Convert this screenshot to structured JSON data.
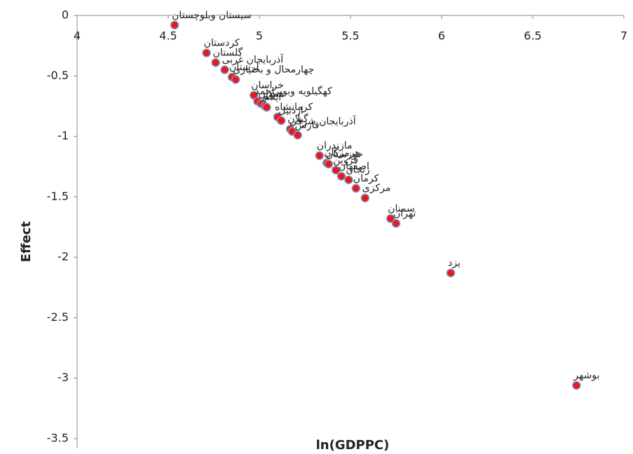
{
  "chart_data": {
    "type": "scatter",
    "xlabel": "ln(GDPPC)",
    "ylabel": "Effect",
    "xlim": [
      4,
      7
    ],
    "ylim": [
      -3.5,
      0
    ],
    "xticks": [
      4,
      4.5,
      5,
      5.5,
      6,
      6.5,
      7
    ],
    "yticks": [
      0,
      -0.5,
      -1,
      -1.5,
      -2,
      -2.5,
      -3,
      -3.5
    ],
    "x": [
      4.535,
      4.71,
      4.76,
      4.81,
      4.85,
      4.87,
      4.97,
      4.99,
      5.01,
      5.03,
      5.04,
      5.1,
      5.12,
      5.17,
      5.18,
      5.21,
      5.33,
      5.37,
      5.38,
      5.42,
      5.45,
      5.49,
      5.53,
      5.58,
      5.72,
      5.75,
      6.05,
      6.74
    ],
    "series": [
      {
        "color": "#e8191c",
        "values": [
          -0.08,
          -0.31,
          -0.39,
          -0.45,
          -0.51,
          -0.53,
          -0.66,
          -0.71,
          -0.73,
          -0.75,
          -0.76,
          -0.84,
          -0.87,
          -0.94,
          -0.96,
          -0.99,
          -1.16,
          -1.22,
          -1.23,
          -1.28,
          -1.33,
          -1.36,
          -1.43,
          -1.51,
          -1.68,
          -1.72,
          -2.13,
          -3.06
        ]
      }
    ],
    "point_labels": [
      "سیستان وبلوچستان",
      "کردستان",
      "گلستان",
      "آذربایجان غربی",
      "لرستان",
      "چهارمحال و بختیاری",
      "خراسان",
      "کهگیلویه وبویراحمد",
      "همدان",
      "قم",
      "ایلام",
      "کرمانشاه",
      "اردبیل",
      "گیلان",
      "آذربایجان شرقی",
      "فارس",
      "مازندران",
      "هرمزگان",
      "خوزستان",
      "قزوین",
      "اصفهان",
      "زنجان",
      "کرمان",
      "مرکزی",
      "سمنان",
      "تهران",
      "یزد",
      "بوشهر"
    ]
  }
}
